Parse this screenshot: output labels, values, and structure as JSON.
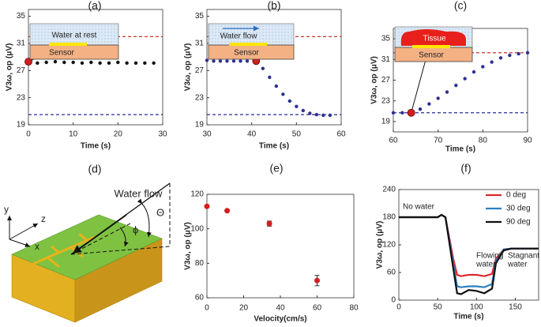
{
  "chart_data": [
    {
      "type": "scatter",
      "panel": "(a)",
      "x_label": "Time (s)",
      "y_label": "V3ω, op (μV)",
      "xlim": [
        0,
        30
      ],
      "xticks": [
        0,
        10,
        20,
        30
      ],
      "ylim": [
        19,
        36
      ],
      "yticks": [
        19,
        23,
        27,
        31,
        35
      ],
      "x": [
        2,
        4,
        6,
        8,
        10,
        12,
        14,
        16,
        18,
        20,
        22,
        24,
        26,
        28
      ],
      "values": [
        28.1,
        28.2,
        28.3,
        28.2,
        28.2,
        28.1,
        28.2,
        28.1,
        28.1,
        28.2,
        28.1,
        28.1,
        28.1,
        28.1
      ],
      "color": "#111111",
      "highlight": {
        "x": 0,
        "value": 28.3,
        "color": "#d11f1f"
      },
      "reference_lines": [
        {
          "value": 32,
          "color": "#c0392b"
        },
        {
          "value": 20.5,
          "color": "#2b2b9a"
        }
      ],
      "inset_labels": [
        "Water at rest",
        "Sensor"
      ]
    },
    {
      "type": "scatter",
      "panel": "(b)",
      "x_label": "Time (s)",
      "y_label": "V3ω, op (μV)",
      "xlim": [
        30,
        60
      ],
      "xticks": [
        30,
        40,
        50,
        60
      ],
      "ylim": [
        19,
        36
      ],
      "yticks": [
        19,
        23,
        27,
        31,
        35
      ],
      "x": [
        30,
        31.5,
        33,
        34.5,
        36,
        37.5,
        39,
        42.5,
        44,
        45.5,
        47,
        48.5,
        50,
        51.5,
        53,
        54.5,
        56,
        57.5
      ],
      "values": [
        28.5,
        28.4,
        28.4,
        28.4,
        28.4,
        28.4,
        28.4,
        27.3,
        26,
        24.7,
        23.5,
        22.5,
        21.7,
        21.1,
        20.7,
        20.5,
        20.4,
        20.4
      ],
      "color": "#2f3192",
      "highlight": {
        "x": 41,
        "value": 28.4,
        "color": "#d11f1f"
      },
      "reference_lines": [
        {
          "value": 32,
          "color": "#c0392b"
        },
        {
          "value": 20.5,
          "color": "#2b2b9a"
        }
      ],
      "inset_labels": [
        "Water flow",
        "Sensor"
      ]
    },
    {
      "type": "scatter",
      "panel": "(c)",
      "x_label": "Time (s)",
      "y_label": "V3ω, op (μV)",
      "xlim": [
        60,
        90
      ],
      "xticks": [
        60,
        70,
        80,
        90
      ],
      "ylim": [
        17,
        37
      ],
      "yticks": [
        19,
        23,
        27,
        31,
        35
      ],
      "x": [
        60,
        62,
        66,
        68,
        70,
        72,
        74,
        76,
        78,
        80,
        82,
        84,
        86,
        88,
        90
      ],
      "values": [
        20.7,
        20.7,
        21.4,
        22.4,
        23.5,
        24.7,
        26,
        27.3,
        28.6,
        29.6,
        30.5,
        31.3,
        31.8,
        32.1,
        32.3
      ],
      "color": "#2f3192",
      "highlight": {
        "x": 64,
        "value": 20.7,
        "color": "#d11f1f"
      },
      "reference_lines": [
        {
          "value": 32.3,
          "color": "#c0392b"
        },
        {
          "value": 20.7,
          "color": "#2b2b9a"
        }
      ],
      "inset_labels": [
        "Tissue",
        "Sensor"
      ]
    },
    {
      "type": "scatter",
      "panel": "(e)",
      "x_label": "Velocity(cm/s)",
      "y_label": "V3ω, op (μV)",
      "xlim": [
        0,
        80
      ],
      "xticks": [
        0,
        20,
        40,
        60,
        80
      ],
      "ylim": [
        60,
        120
      ],
      "yticks": [
        60,
        80,
        100,
        120
      ],
      "x": [
        0,
        11,
        34,
        60
      ],
      "values": [
        113,
        110.5,
        103,
        70
      ],
      "errors": [
        null,
        null,
        1.5,
        3
      ],
      "color": "#d11f1f"
    },
    {
      "type": "line",
      "panel": "(f)",
      "x_label": "Time (s)",
      "y_label": "V3ω, op (μV)",
      "xlim": [
        0,
        180
      ],
      "xticks": [
        0,
        50,
        100,
        150
      ],
      "ylim": [
        0,
        240
      ],
      "yticks": [
        0,
        60,
        120,
        180,
        240
      ],
      "x": [
        0,
        50,
        55,
        60,
        70,
        75,
        80,
        90,
        100,
        110,
        120,
        125,
        135,
        145,
        180
      ],
      "series": [
        {
          "name": "0 deg",
          "color": "#e0242b",
          "values": [
            180,
            180,
            185,
            180,
            90,
            55,
            52,
            55,
            55,
            52,
            57,
            90,
            110,
            112,
            112
          ]
        },
        {
          "name": "30 deg",
          "color": "#2a7fc1",
          "values": [
            180,
            180,
            185,
            180,
            80,
            30,
            28,
            30,
            30,
            28,
            35,
            85,
            110,
            112,
            112
          ]
        },
        {
          "name": "90 deg",
          "color": "#111111",
          "values": [
            180,
            180,
            185,
            180,
            70,
            15,
            13,
            22,
            20,
            15,
            25,
            80,
            108,
            112,
            112
          ]
        }
      ],
      "annotations": [
        "No water",
        "Flowing",
        "water",
        "Stagnant",
        "water"
      ]
    }
  ],
  "diagram": {
    "panel": "(d)",
    "flow_label": "Water flow",
    "theta": "Θ",
    "phi": "ϕ",
    "axes": [
      "y",
      "z",
      "x"
    ]
  }
}
